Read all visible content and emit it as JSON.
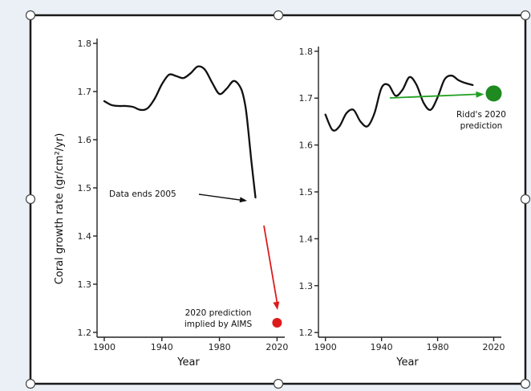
{
  "colors": {
    "background": "#eaf0f6",
    "panel_fill": "#ffffff",
    "frame": "#1a1a1a",
    "series_line": "#111111",
    "aims_arrow": "#dd1b1b",
    "aims_point": "#dd1b1b",
    "ridd_arrow": "#22a022",
    "ridd_point": "#1f8a1f"
  },
  "chart_data": [
    {
      "type": "line",
      "title": "",
      "ylabel": "Coral growth rate (gr/cm²/yr)",
      "xlabel": "Year",
      "xlim": [
        1895,
        2022
      ],
      "ylim": [
        1.19,
        1.81
      ],
      "x_ticks": [
        1900,
        1940,
        1980,
        2020
      ],
      "y_ticks": [
        "1.2",
        "1.3",
        "1.4",
        "1.5",
        "1.6",
        "1.7",
        "1.8"
      ],
      "series": [
        {
          "x": [
            1900,
            1905,
            1910,
            1915,
            1920,
            1925,
            1930,
            1935,
            1940,
            1945,
            1950,
            1955,
            1960,
            1965,
            1970,
            1975,
            1980,
            1985,
            1990,
            1995,
            1998,
            2000,
            2002,
            2005
          ],
          "y": [
            1.68,
            1.672,
            1.67,
            1.67,
            1.668,
            1.662,
            1.665,
            1.685,
            1.715,
            1.735,
            1.732,
            1.728,
            1.738,
            1.752,
            1.745,
            1.718,
            1.695,
            1.706,
            1.722,
            1.706,
            1.67,
            1.62,
            1.56,
            1.48
          ]
        }
      ],
      "annotations": [
        {
          "text": "Data ends 2005",
          "target": [
            2005,
            1.48
          ]
        },
        {
          "text": "2020 prediction implied by AIMS",
          "lines": [
            "2020 prediction",
            "implied by AIMS"
          ],
          "point": [
            2020,
            1.22
          ]
        }
      ]
    },
    {
      "type": "line",
      "title": "",
      "xlabel": "Year",
      "ylabel": "",
      "xlim": [
        1895,
        2022
      ],
      "ylim": [
        1.19,
        1.81
      ],
      "x_ticks": [
        1900,
        1940,
        1980,
        2020
      ],
      "y_ticks": [
        "1.2",
        "1.3",
        "1.4",
        "1.5",
        "1.6",
        "1.7",
        "1.8"
      ],
      "series": [
        {
          "x": [
            1900,
            1905,
            1910,
            1915,
            1920,
            1925,
            1930,
            1935,
            1940,
            1945,
            1950,
            1955,
            1960,
            1965,
            1970,
            1975,
            1980,
            1985,
            1990,
            1995,
            2000,
            2005
          ],
          "y": [
            1.665,
            1.632,
            1.64,
            1.668,
            1.675,
            1.65,
            1.64,
            1.668,
            1.722,
            1.728,
            1.705,
            1.718,
            1.745,
            1.728,
            1.69,
            1.675,
            1.702,
            1.74,
            1.748,
            1.738,
            1.732,
            1.728
          ]
        }
      ],
      "annotations": [
        {
          "text": "Ridd's 2020 prediction",
          "lines": [
            "Ridd's 2020",
            "prediction"
          ],
          "point": [
            2020,
            1.71
          ]
        }
      ]
    }
  ]
}
